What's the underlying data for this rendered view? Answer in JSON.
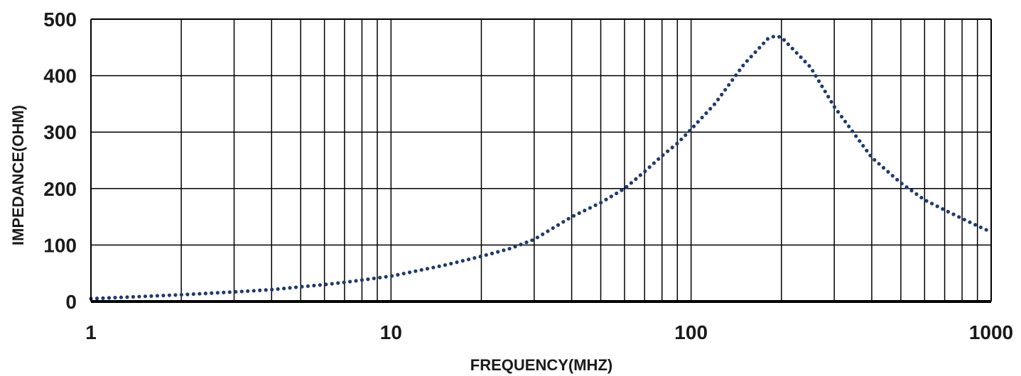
{
  "chart_data": {
    "type": "line",
    "xlabel": "FREQUENCY(MHZ)",
    "ylabel": "IMPEDANCE(OHM)",
    "x_scale": "log",
    "xlim": [
      1,
      1000
    ],
    "ylim": [
      0,
      500
    ],
    "x_ticks": [
      1,
      10,
      100,
      1000
    ],
    "x_tick_labels": [
      "1",
      "10",
      "100",
      "1000"
    ],
    "y_ticks": [
      0,
      100,
      200,
      300,
      400,
      500
    ],
    "y_tick_labels": [
      "0",
      "100",
      "200",
      "300",
      "400",
      "500"
    ],
    "grid": true,
    "line_style": "dotted",
    "series_color": "#1f3a6e",
    "series": [
      {
        "x": [
          1,
          2,
          3,
          4,
          5,
          6,
          7,
          8,
          10,
          15,
          20,
          25,
          30,
          40,
          50,
          60,
          70,
          80,
          90,
          100,
          120,
          150,
          180,
          190,
          200,
          250,
          300,
          400,
          500,
          600,
          700,
          800,
          900,
          1000
        ],
        "values": [
          5,
          12,
          17,
          21,
          26,
          30,
          34,
          38,
          45,
          64,
          80,
          94,
          110,
          150,
          175,
          200,
          230,
          258,
          280,
          305,
          350,
          420,
          465,
          470,
          468,
          415,
          345,
          255,
          210,
          180,
          162,
          147,
          134,
          123
        ]
      }
    ]
  }
}
